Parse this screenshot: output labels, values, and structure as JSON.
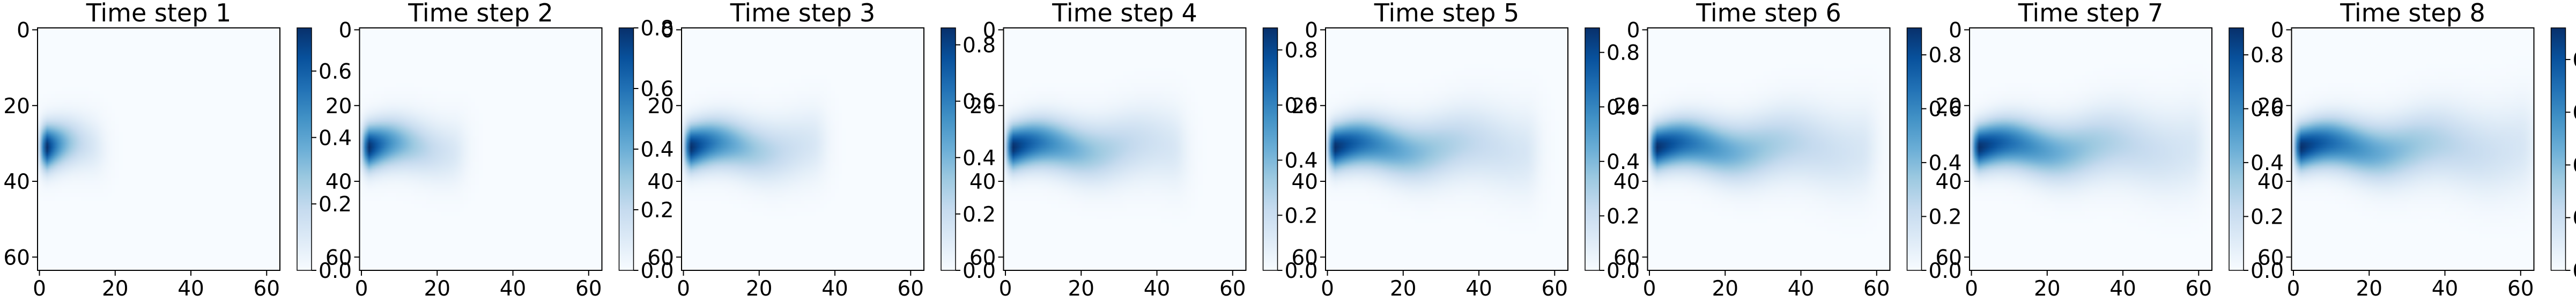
{
  "colorbar_ticks": [
    0.0,
    0.2,
    0.4,
    0.6,
    0.8
  ],
  "colormap": [
    "#f7fbff",
    "#deebf7",
    "#c6dbef",
    "#9ecae1",
    "#6baed6",
    "#4292c6",
    "#2171b5",
    "#08519c",
    "#08306b"
  ],
  "chart_data": {
    "type": "heatmap",
    "grid_size": [
      64,
      64
    ],
    "source_position": [
      2,
      31
    ],
    "panels": [
      {
        "title": "Time step 1",
        "xticks": [
          0,
          20,
          40,
          60
        ],
        "yticks": [
          0,
          20,
          40,
          60
        ],
        "vmin": 0.0,
        "vmax": 0.73,
        "plume_length": 12
      },
      {
        "title": "Time step 2",
        "xticks": [
          0,
          20,
          40,
          60
        ],
        "yticks": [
          0,
          20,
          40,
          60
        ],
        "vmin": 0.0,
        "vmax": 0.8,
        "plume_length": 22
      },
      {
        "title": "Time step 3",
        "xticks": [
          0,
          20,
          40,
          60
        ],
        "yticks": [
          0,
          20,
          40,
          60
        ],
        "vmin": 0.0,
        "vmax": 0.86,
        "plume_length": 32
      },
      {
        "title": "Time step 4",
        "xticks": [
          0,
          20,
          40,
          60
        ],
        "yticks": [
          0,
          20,
          40,
          60
        ],
        "vmin": 0.0,
        "vmax": 0.88,
        "plume_length": 42
      },
      {
        "title": "Time step 5",
        "xticks": [
          0,
          20,
          40,
          60
        ],
        "yticks": [
          0,
          20,
          40,
          60
        ],
        "vmin": 0.0,
        "vmax": 0.89,
        "plume_length": 50
      },
      {
        "title": "Time step 6",
        "xticks": [
          0,
          20,
          40,
          60
        ],
        "yticks": [
          0,
          20,
          40,
          60
        ],
        "vmin": 0.0,
        "vmax": 0.9,
        "plume_length": 54
      },
      {
        "title": "Time step 7",
        "xticks": [
          0,
          20,
          40,
          60
        ],
        "yticks": [
          0,
          20,
          40,
          60
        ],
        "vmin": 0.0,
        "vmax": 0.9,
        "plume_length": 56
      },
      {
        "title": "Time step 8",
        "xticks": [
          0,
          20,
          40,
          60
        ],
        "yticks": [
          0,
          20,
          40,
          60
        ],
        "vmin": 0.0,
        "vmax": 0.92,
        "plume_length": 58
      }
    ]
  }
}
